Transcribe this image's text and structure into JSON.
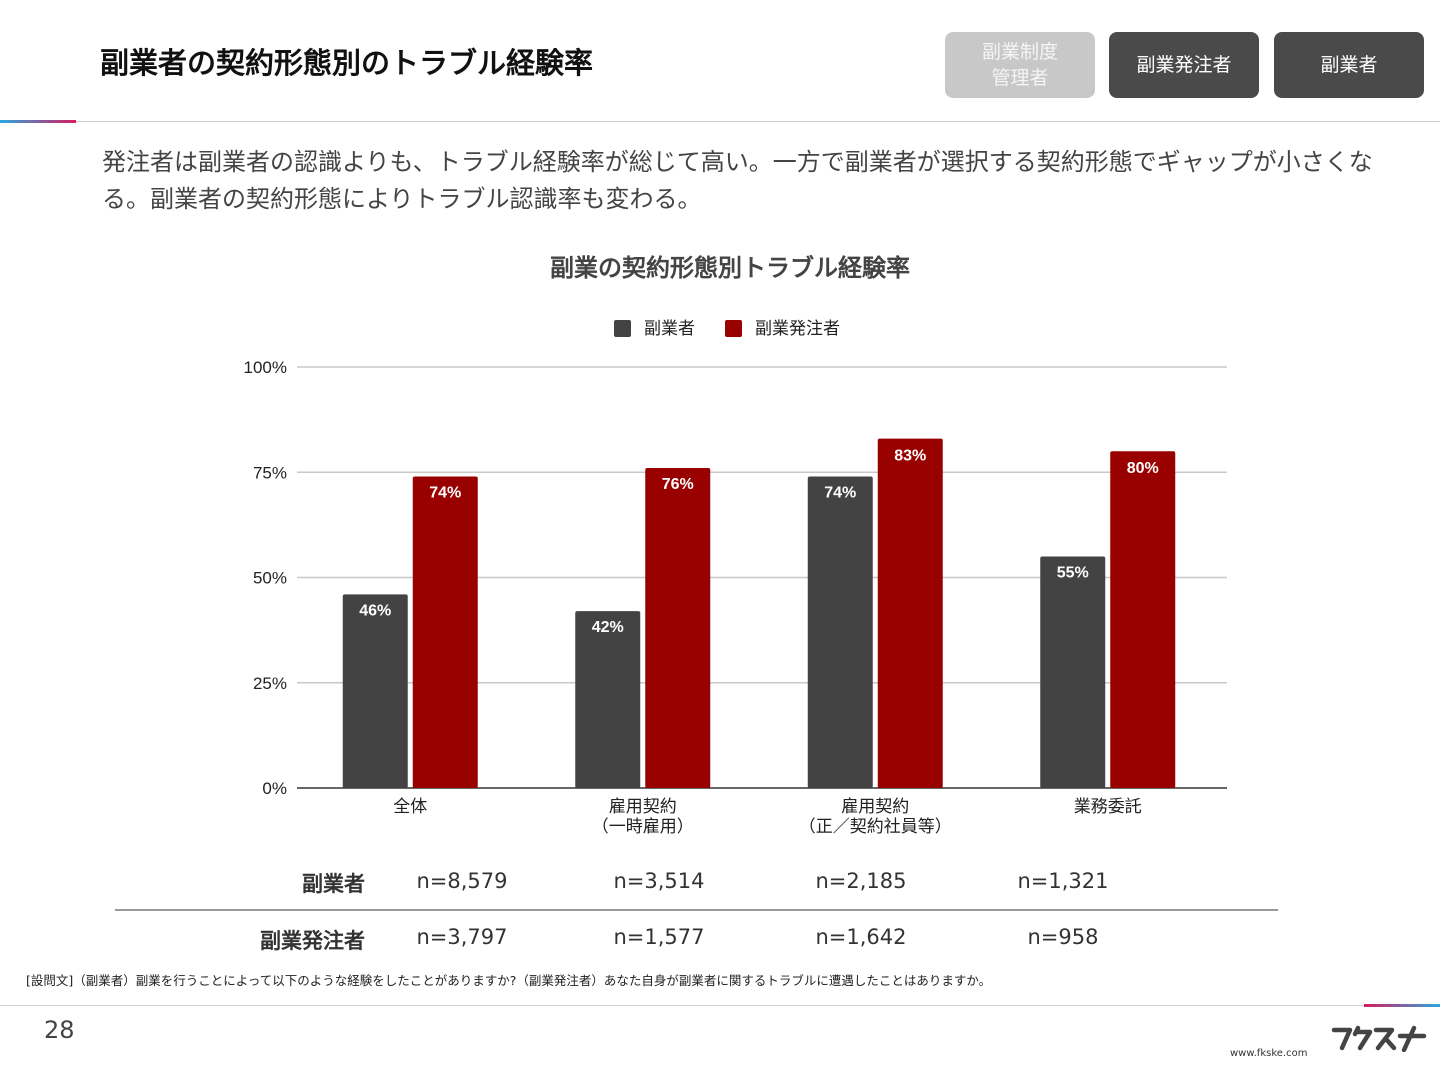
{
  "header": {
    "title": "副業者の契約形態別のトラブル経験率",
    "tabs": [
      {
        "label": "副業制度\n管理者"
      },
      {
        "label": "副業発注者"
      },
      {
        "label": "副業者"
      }
    ]
  },
  "lead": "発注者は副業者の認識よりも、トラブル経験率が総じて高い。一方で副業者が選択する契約形態でギャップが小さくなる。副業者の契約形態によりトラブル認識率も変わる。",
  "chart_data": {
    "type": "bar",
    "title": "副業の契約形態別トラブル経験率",
    "categories": [
      "全体",
      "雇用契約\n（一時雇用）",
      "雇用契約\n（正／契約社員等）",
      "業務委託"
    ],
    "series": [
      {
        "name": "副業者",
        "values": [
          46,
          42,
          74,
          55
        ],
        "labels": [
          "46%",
          "42%",
          "74%",
          "55%"
        ],
        "color": "#434343"
      },
      {
        "name": "副業発注者",
        "values": [
          74,
          76,
          83,
          80
        ],
        "labels": [
          "74%",
          "76%",
          "83%",
          "80%"
        ],
        "color": "#990000"
      }
    ],
    "ylim": [
      0,
      100
    ],
    "yticks": [
      "0%",
      "25%",
      "50%",
      "75%",
      "100%"
    ],
    "legend": "top",
    "grid": true
  },
  "samples": {
    "rows": [
      {
        "label": "副業者",
        "values": [
          "n=8,579",
          "n=3,514",
          "n=2,185",
          "n=1,321"
        ]
      },
      {
        "label": "副業発注者",
        "values": [
          "n=3,797",
          "n=1,577",
          "n=1,642",
          "n=958"
        ]
      }
    ]
  },
  "footnote": "[設問文]（副業者）副業を行うことによって以下のような経験をしたことがありますか?（副業発注者）あなた自身が副業者に関するトラブルに遭遇したことはありますか。",
  "footer": {
    "page": "28",
    "logo_text": "フクスケ",
    "url": "www.fkske.com"
  }
}
